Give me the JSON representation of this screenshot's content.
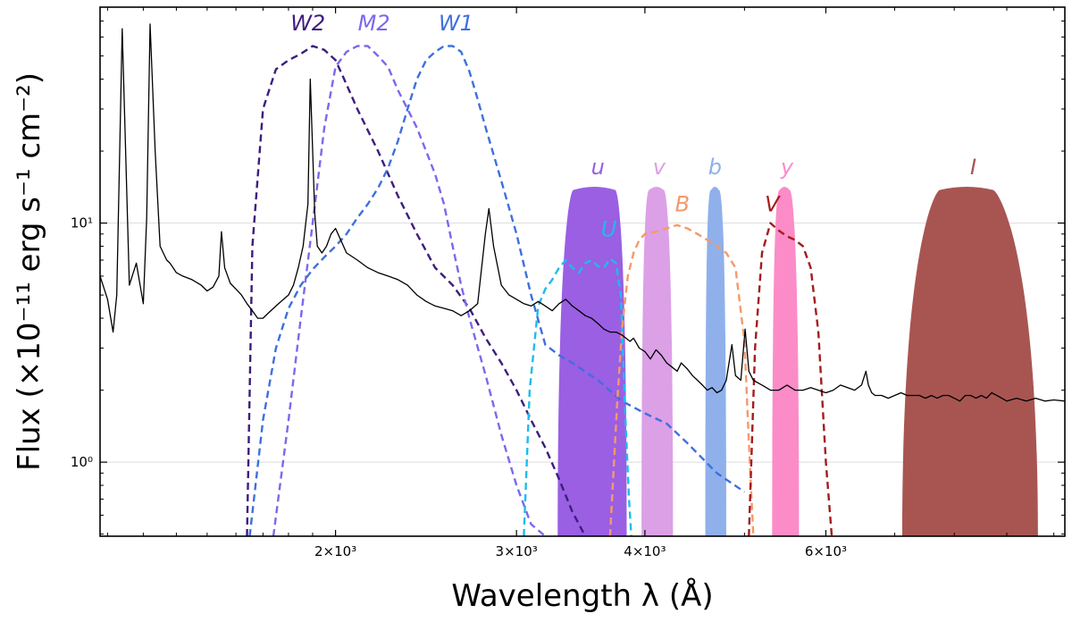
{
  "chart_data": {
    "type": "line",
    "title": "",
    "xscale": "log",
    "yscale": "log",
    "xlim": [
      1180,
      10250
    ],
    "ylim": [
      0.49,
      80
    ],
    "xlabel": "Wavelength λ (Å)",
    "ylabel": "Flux (×10⁻¹¹ erg s⁻¹ cm⁻²)",
    "xtick_labels": [
      {
        "value": 2000,
        "label": "2×10³"
      },
      {
        "value": 3000,
        "label": "3×10³"
      },
      {
        "value": 4000,
        "label": "4×10³"
      },
      {
        "value": 6000,
        "label": "6×10³"
      }
    ],
    "ytick_labels": [
      {
        "value": 1,
        "label": "10⁰"
      },
      {
        "value": 10,
        "label": "10¹"
      }
    ],
    "spectrum": {
      "name": "Spectrum",
      "color": "#000000",
      "x": [
        1180,
        1200,
        1215,
        1225,
        1240,
        1260,
        1280,
        1300,
        1310,
        1320,
        1335,
        1350,
        1370,
        1380,
        1390,
        1400,
        1420,
        1450,
        1480,
        1500,
        1520,
        1540,
        1549,
        1560,
        1580,
        1600,
        1620,
        1640,
        1660,
        1680,
        1700,
        1720,
        1750,
        1780,
        1800,
        1820,
        1840,
        1860,
        1880,
        1890,
        1900,
        1909,
        1920,
        1940,
        1960,
        1980,
        2000,
        2050,
        2100,
        2150,
        2200,
        2250,
        2300,
        2350,
        2400,
        2450,
        2500,
        2550,
        2600,
        2650,
        2700,
        2750,
        2798,
        2820,
        2850,
        2900,
        2950,
        3000,
        3050,
        3100,
        3150,
        3200,
        3250,
        3300,
        3350,
        3400,
        3450,
        3500,
        3550,
        3600,
        3650,
        3700,
        3750,
        3800,
        3869,
        3900,
        3950,
        4000,
        4050,
        4101,
        4150,
        4200,
        4250,
        4300,
        4340,
        4400,
        4450,
        4500,
        4550,
        4600,
        4650,
        4700,
        4750,
        4800,
        4861,
        4900,
        4959,
        5007,
        5050,
        5100,
        5200,
        5300,
        5400,
        5500,
        5600,
        5700,
        5800,
        5900,
        6000,
        6100,
        6200,
        6300,
        6400,
        6500,
        6563,
        6600,
        6650,
        6700,
        6800,
        6900,
        7000,
        7100,
        7200,
        7300,
        7400,
        7500,
        7600,
        7700,
        7800,
        7900,
        8000,
        8100,
        8200,
        8300,
        8400,
        8500,
        8600,
        8700,
        8800,
        8900,
        9000,
        9200,
        9400,
        9600,
        9800,
        10000,
        10250
      ],
      "values": [
        6.0,
        4.8,
        3.5,
        5.0,
        65,
        5.5,
        6.8,
        4.6,
        10.5,
        68,
        20,
        8.0,
        7.0,
        6.8,
        6.5,
        6.2,
        6.0,
        5.8,
        5.5,
        5.2,
        5.4,
        6.0,
        9.2,
        6.5,
        5.6,
        5.3,
        5.0,
        4.6,
        4.3,
        4.0,
        4.0,
        4.2,
        4.5,
        4.8,
        5.0,
        5.5,
        6.5,
        8.0,
        12,
        40,
        20,
        11,
        8.0,
        7.5,
        8.0,
        9.0,
        9.5,
        7.5,
        7.0,
        6.5,
        6.2,
        6.0,
        5.8,
        5.5,
        5.0,
        4.7,
        4.5,
        4.4,
        4.3,
        4.1,
        4.3,
        4.6,
        9.0,
        11.5,
        8.0,
        5.5,
        5.0,
        4.8,
        4.6,
        4.5,
        4.7,
        4.5,
        4.3,
        4.6,
        4.8,
        4.5,
        4.3,
        4.1,
        4.0,
        3.8,
        3.6,
        3.5,
        3.5,
        3.4,
        3.2,
        3.3,
        3.0,
        2.9,
        2.7,
        2.95,
        2.8,
        2.6,
        2.5,
        2.4,
        2.6,
        2.45,
        2.3,
        2.2,
        2.1,
        2.0,
        2.05,
        1.95,
        2.0,
        2.2,
        3.1,
        2.3,
        2.2,
        3.6,
        2.4,
        2.2,
        2.1,
        2.0,
        2.0,
        2.1,
        2.0,
        2.0,
        2.05,
        2.0,
        1.95,
        2.0,
        2.1,
        2.05,
        2.0,
        2.1,
        2.4,
        2.1,
        1.95,
        1.9,
        1.9,
        1.85,
        1.9,
        1.95,
        1.9,
        1.9,
        1.9,
        1.85,
        1.9,
        1.85,
        1.9,
        1.9,
        1.85,
        1.8,
        1.9,
        1.9,
        1.85,
        1.9,
        1.85,
        1.95,
        1.9,
        1.85,
        1.8,
        1.85,
        1.8,
        1.85,
        1.8,
        1.82,
        1.8
      ]
    },
    "series": [
      {
        "name": "W2",
        "label": "W2",
        "color": "#3d1d7e",
        "style": "dashed",
        "x": [
          1640,
          1660,
          1700,
          1750,
          1800,
          1850,
          1900,
          1950,
          2000,
          2050,
          2100,
          2200,
          2300,
          2400,
          2500,
          2600,
          2700,
          2800,
          2900,
          3000,
          3100,
          3200,
          3300,
          3400,
          3500
        ],
        "values": [
          0.45,
          8.0,
          30,
          44,
          48,
          51,
          55,
          53,
          48,
          38,
          30,
          20,
          13,
          9.0,
          6.5,
          5.5,
          4.4,
          3.3,
          2.6,
          2.0,
          1.5,
          1.15,
          0.85,
          0.62,
          0.45
        ]
      },
      {
        "name": "M2",
        "label": "M2",
        "color": "#7b68ee",
        "style": "dashed",
        "x": [
          1740,
          1800,
          1850,
          1900,
          1950,
          2000,
          2050,
          2100,
          2150,
          2200,
          2250,
          2300,
          2350,
          2400,
          2450,
          2500,
          2550,
          2600,
          2650,
          2700,
          2800,
          2900,
          3000,
          3100,
          3200
        ],
        "values": [
          0.45,
          1.5,
          4.0,
          10,
          25,
          45,
          52,
          55,
          55,
          50,
          45,
          36,
          30,
          25,
          20,
          16,
          12,
          8.0,
          5.5,
          4.0,
          2.3,
          1.3,
          0.8,
          0.55,
          0.45
        ]
      },
      {
        "name": "W1",
        "label": "W1",
        "color": "#3f6fdf",
        "style": "dashed",
        "x": [
          1650,
          1700,
          1750,
          1800,
          1850,
          1900,
          1950,
          2000,
          2050,
          2100,
          2150,
          2200,
          2250,
          2300,
          2350,
          2400,
          2450,
          2500,
          2550,
          2600,
          2650,
          2700,
          2750,
          2800,
          2900,
          3000,
          3100,
          3200,
          3300,
          3400,
          3600,
          3800,
          4000,
          4200,
          4400,
          4700,
          5000
        ],
        "values": [
          0.45,
          1.5,
          3.0,
          4.4,
          5.5,
          6.4,
          7.2,
          8.0,
          9.0,
          10.5,
          12,
          14,
          17,
          22,
          30,
          40,
          48,
          52,
          55,
          55,
          52,
          43,
          33,
          25,
          15,
          9.0,
          5.0,
          3.1,
          2.8,
          2.6,
          2.2,
          1.8,
          1.6,
          1.45,
          1.2,
          0.9,
          0.75
        ]
      },
      {
        "name": "U",
        "label": "U",
        "color": "#1ebcec",
        "style": "dashed",
        "x": [
          3050,
          3090,
          3150,
          3200,
          3250,
          3300,
          3350,
          3400,
          3450,
          3500,
          3550,
          3600,
          3650,
          3700,
          3750,
          3790,
          3830,
          3860,
          3880
        ],
        "values": [
          0.45,
          2.0,
          4.5,
          5.3,
          5.8,
          6.5,
          7.0,
          6.5,
          6.2,
          6.8,
          7.0,
          6.6,
          6.5,
          7.1,
          6.8,
          5.0,
          1.5,
          0.7,
          0.45
        ]
      },
      {
        "name": "B",
        "label": "B",
        "color": "#f5996b",
        "style": "dashed",
        "x": [
          3700,
          3760,
          3800,
          3850,
          3900,
          3950,
          4000,
          4100,
          4200,
          4300,
          4400,
          4500,
          4600,
          4700,
          4800,
          4900,
          5000,
          5050,
          5100
        ],
        "values": [
          0.45,
          1.8,
          3.6,
          6.0,
          7.5,
          8.5,
          9.0,
          9.2,
          9.5,
          9.8,
          9.5,
          9.0,
          8.5,
          8.0,
          7.5,
          6.5,
          3.2,
          1.2,
          0.45
        ]
      },
      {
        "name": "V",
        "label": "V",
        "color": "#a51c1c",
        "style": "dashed",
        "x": [
          5050,
          5120,
          5200,
          5300,
          5400,
          5500,
          5600,
          5700,
          5800,
          5900,
          6000,
          6080
        ],
        "values": [
          0.45,
          3.0,
          7.5,
          10,
          9.3,
          8.8,
          8.5,
          8.0,
          6.5,
          3.5,
          1.0,
          0.45
        ]
      }
    ],
    "bands": [
      {
        "name": "u",
        "label": "u",
        "color": "#9a5fe3",
        "center": 3460,
        "plateau": [
          3410,
          3740
        ],
        "base": [
          3290,
          3840
        ],
        "peak": 14
      },
      {
        "name": "v",
        "label": "v",
        "color": "#dca0e6",
        "center": 4100,
        "plateau": [
          4040,
          4170
        ],
        "base": [
          3970,
          4260
        ],
        "peak": 14
      },
      {
        "name": "b",
        "label": "b",
        "color": "#8fb0eb",
        "center": 4680,
        "plateau": [
          4640,
          4720
        ],
        "base": [
          4580,
          4800
        ],
        "peak": 14
      },
      {
        "name": "y",
        "label": "y",
        "color": "#fb8cc7",
        "center": 5470,
        "plateau": [
          5410,
          5530
        ],
        "base": [
          5320,
          5650
        ],
        "peak": 14
      },
      {
        "name": "I",
        "label": "I",
        "color": "#a85552",
        "center": 8200,
        "plateau": [
          7750,
          8720
        ],
        "base": [
          7120,
          9650
        ],
        "peak": 14
      }
    ]
  }
}
